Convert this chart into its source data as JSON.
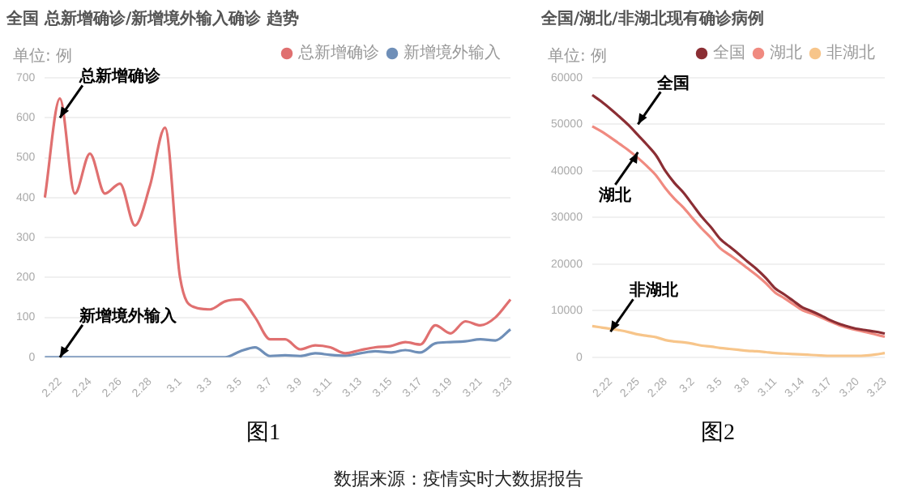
{
  "chart_data": [
    {
      "type": "line",
      "title": "全国 总新增确诊/新增境外输入确诊 趋势",
      "ylabel": "单位: 例",
      "categories": [
        null,
        "2.22",
        null,
        "2.24",
        null,
        "2.26",
        null,
        "2.28",
        null,
        "3.1",
        null,
        "3.3",
        null,
        "3.5",
        null,
        "3.7",
        null,
        "3.9",
        null,
        "3.11",
        null,
        "3.13",
        null,
        "3.15",
        null,
        "3.17",
        null,
        "3.19",
        null,
        "3.21",
        null,
        "3.23"
      ],
      "series": [
        {
          "name": "总新增确诊",
          "color": "#e07070",
          "values": [
            400,
            648,
            410,
            510,
            410,
            435,
            330,
            430,
            575,
            200,
            125,
            120,
            140,
            145,
            100,
            45,
            45,
            20,
            30,
            25,
            10,
            18,
            25,
            28,
            38,
            32,
            80,
            60,
            90,
            80,
            100,
            145
          ]
        },
        {
          "name": "新增境外输入",
          "color": "#6f8fb8",
          "values": [
            0,
            0,
            0,
            0,
            0,
            0,
            0,
            0,
            0,
            0,
            0,
            0,
            0,
            15,
            25,
            3,
            5,
            3,
            10,
            6,
            4,
            10,
            15,
            12,
            18,
            12,
            35,
            38,
            40,
            45,
            42,
            70
          ]
        }
      ],
      "ylim": [
        0,
        700
      ],
      "yticks": [
        0,
        100,
        200,
        300,
        400,
        500,
        600,
        700
      ],
      "grid": "y",
      "legend": "top right",
      "marker": "none",
      "annotations": [
        {
          "text": "总新增确诊",
          "x": "2.22",
          "y": 600
        },
        {
          "text": "新增境外输入",
          "x": "2.22",
          "y": 0
        },
        "图1",
        "数据来源：疫情实时大数据报告"
      ]
    },
    {
      "type": "line",
      "title": "全国/湖北/非湖北现有确诊病例",
      "ylabel": "单位: 例",
      "categories": [
        null,
        null,
        "2.22",
        null,
        null,
        "2.25",
        null,
        null,
        "2.28",
        null,
        null,
        "3.2",
        null,
        null,
        "3.5",
        null,
        null,
        "3.8",
        null,
        null,
        "3.11",
        null,
        null,
        "3.14",
        null,
        null,
        "3.17",
        null,
        null,
        "3.20",
        null,
        null,
        "3.23"
      ],
      "series": [
        {
          "name": "全国",
          "color": "#8b2e34",
          "values": [
            56300,
            54900,
            53300,
            51600,
            49800,
            47700,
            45600,
            43300,
            40000,
            37400,
            35300,
            32700,
            30100,
            27900,
            25400,
            23800,
            22200,
            20500,
            18900,
            17000,
            14800,
            13500,
            12100,
            10700,
            9900,
            9000,
            8000,
            7200,
            6600,
            6100,
            5800,
            5500,
            5100
          ]
        },
        {
          "name": "湖北",
          "color": "#f08a80",
          "values": [
            49600,
            48500,
            47200,
            45800,
            44400,
            42800,
            41000,
            39000,
            36300,
            34000,
            32100,
            29800,
            27600,
            25600,
            23400,
            22000,
            20600,
            19100,
            17600,
            15900,
            13900,
            12700,
            11400,
            10100,
            9400,
            8600,
            7700,
            6900,
            6300,
            5800,
            5400,
            4900,
            4400
          ]
        },
        {
          "name": "非湖北",
          "color": "#f7c58a",
          "values": [
            6700,
            6400,
            6100,
            5800,
            5400,
            4900,
            4600,
            4300,
            3700,
            3400,
            3200,
            2900,
            2500,
            2300,
            2000,
            1800,
            1600,
            1400,
            1300,
            1100,
            900,
            800,
            700,
            600,
            500,
            400,
            300,
            300,
            300,
            300,
            400,
            600,
            900
          ]
        }
      ],
      "ylim": [
        0,
        60000
      ],
      "yticks": [
        0,
        10000,
        20000,
        30000,
        40000,
        50000,
        60000
      ],
      "grid": "y",
      "legend": "top right",
      "marker": "none",
      "annotations": [
        {
          "text": "全国",
          "x": "2.25",
          "y": 50000
        },
        {
          "text": "湖北",
          "x": "2.25",
          "y": 44000
        },
        {
          "text": "非湖北",
          "x": "2.22",
          "y": 5500
        },
        "图2"
      ]
    }
  ]
}
